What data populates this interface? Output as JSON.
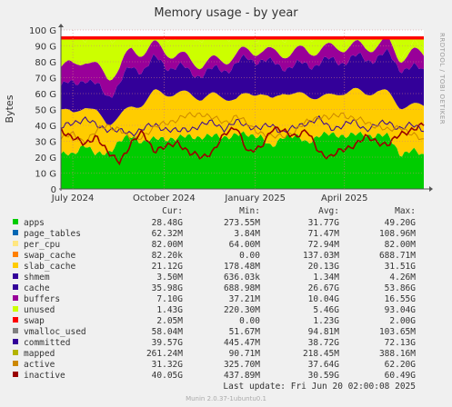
{
  "chart_data": {
    "type": "area",
    "title": "Memory usage - by year",
    "ylabel": "Bytes",
    "side_label": "RRDTOOL / TOBI OETIKER",
    "footer": "Munin 2.0.37-1ubuntu0.1",
    "last_update": "Last update: Fri Jun 20 02:00:08 2025",
    "ylim": [
      0,
      100
    ],
    "y_unit": "G",
    "y_ticks": [
      {
        "value": 0,
        "label": "0"
      },
      {
        "value": 10,
        "label": "10 G"
      },
      {
        "value": 20,
        "label": "20 G"
      },
      {
        "value": 30,
        "label": "30 G"
      },
      {
        "value": 40,
        "label": "40 G"
      },
      {
        "value": 50,
        "label": "50 G"
      },
      {
        "value": 60,
        "label": "60 G"
      },
      {
        "value": 70,
        "label": "70 G"
      },
      {
        "value": 80,
        "label": "80 G"
      },
      {
        "value": 90,
        "label": "90 G"
      },
      {
        "value": 100,
        "label": "100 G"
      }
    ],
    "xlim": [
      "2024-06-19",
      "2025-06-20"
    ],
    "x_ticks": [
      {
        "date": "2024-07-01",
        "label": "July 2024"
      },
      {
        "date": "2024-10-01",
        "label": "October 2024"
      },
      {
        "date": "2025-01-01",
        "label": "January 2025"
      },
      {
        "date": "2025-04-01",
        "label": "April 2025"
      }
    ],
    "grid": true,
    "columns": [
      "Cur:",
      "Min:",
      "Avg:",
      "Max:"
    ],
    "series": [
      {
        "name": "apps",
        "color": "#00cc00",
        "kind": "area",
        "values": [
          "28.48G",
          "273.55M",
          "31.77G",
          "49.20G"
        ],
        "trend": [
          22,
          21,
          29,
          21,
          23,
          30,
          33,
          30,
          31,
          32,
          32,
          33,
          33,
          33,
          33,
          34,
          34,
          34,
          25,
          34,
          33,
          29,
          34,
          34,
          34,
          34,
          34,
          34,
          33,
          22,
          24,
          21
        ]
      },
      {
        "name": "page_tables",
        "color": "#0066b3",
        "kind": "area",
        "values": [
          "62.32M",
          "3.84M",
          "71.47M",
          "108.96M"
        ]
      },
      {
        "name": "per_cpu",
        "color": "#ffe680",
        "kind": "area",
        "values": [
          "82.00M",
          "64.00M",
          "72.94M",
          "82.00M"
        ]
      },
      {
        "name": "swap_cache",
        "color": "#ff8000",
        "kind": "area",
        "values": [
          "82.20k",
          "0.00",
          "137.03M",
          "688.71M"
        ]
      },
      {
        "name": "slab_cache",
        "color": "#ffcc00",
        "kind": "area",
        "values": [
          "21.12G",
          "178.48M",
          "20.13G",
          "31.51G"
        ],
        "trend": [
          28,
          26,
          24,
          27,
          18,
          16,
          18,
          24,
          30,
          28,
          28,
          27,
          24,
          26,
          25,
          22,
          26,
          27,
          30,
          28,
          26,
          30,
          24,
          24,
          27,
          28,
          26,
          28,
          27,
          30,
          28,
          32
        ]
      },
      {
        "name": "shmem",
        "color": "#330099",
        "kind": "area",
        "values": [
          "3.50M",
          "636.03k",
          "1.34M",
          "4.26M"
        ]
      },
      {
        "name": "cache",
        "color": "#330099",
        "kind": "area",
        "values": [
          "35.98G",
          "688.98M",
          "26.67G",
          "53.86G"
        ],
        "trend": [
          15,
          18,
          18,
          16,
          18,
          20,
          25,
          22,
          20,
          18,
          17,
          13,
          16,
          15,
          18,
          22,
          22,
          21,
          23,
          16,
          18,
          19,
          22,
          22,
          20,
          20,
          22,
          21,
          24,
          25,
          23,
          22
        ]
      },
      {
        "name": "buffers",
        "color": "#990099",
        "kind": "area",
        "values": [
          "7.10G",
          "37.21M",
          "10.04G",
          "16.55G"
        ],
        "trend": [
          12,
          12,
          12,
          12,
          12,
          10,
          11,
          11,
          9,
          9,
          7,
          8,
          6,
          6,
          6,
          6,
          5,
          6,
          7,
          8,
          9,
          9,
          8,
          8,
          9,
          8,
          7,
          8,
          8,
          6,
          10,
          10
        ]
      },
      {
        "name": "unused",
        "color": "#ccff00",
        "kind": "area",
        "values": [
          "1.43G",
          "220.30M",
          "5.46G",
          "93.04G"
        ],
        "trend": [
          20,
          20,
          15,
          22,
          27,
          22,
          11,
          12,
          9,
          11,
          13,
          17,
          18,
          18,
          16,
          16,
          11,
          10,
          13,
          12,
          12,
          11,
          10,
          10,
          8,
          8,
          8,
          7,
          6,
          5,
          3,
          3
        ]
      },
      {
        "name": "swap",
        "color": "#ff0000",
        "kind": "area",
        "values": [
          "2.05M",
          "0.00",
          "1.23G",
          "2.00G"
        ]
      },
      {
        "name": "vmalloc_used",
        "color": "#808080",
        "kind": "line",
        "values": [
          "58.04M",
          "51.67M",
          "94.81M",
          "103.65M"
        ]
      },
      {
        "name": "committed",
        "color": "#330099",
        "kind": "line",
        "values": [
          "39.57G",
          "445.47M",
          "38.72G",
          "72.13G"
        ],
        "trend": [
          38,
          42,
          44,
          40,
          38,
          36,
          35,
          38,
          40,
          38,
          36,
          38,
          40,
          42,
          38,
          42,
          40,
          38,
          40,
          36,
          38,
          42,
          44,
          38,
          40,
          42,
          38,
          40,
          42,
          38,
          40,
          38
        ]
      },
      {
        "name": "mapped",
        "color": "#b3b300",
        "kind": "line",
        "values": [
          "261.24M",
          "90.71M",
          "218.45M",
          "388.16M"
        ]
      },
      {
        "name": "active",
        "color": "#cc8800",
        "kind": "line",
        "values": [
          "31.32G",
          "325.70M",
          "37.64G",
          "62.20G"
        ],
        "trend": [
          32,
          34,
          30,
          36,
          40,
          38,
          30,
          34,
          38,
          42,
          44,
          46,
          48,
          44,
          42,
          46,
          40,
          36,
          32,
          34,
          36,
          42,
          46,
          44,
          48,
          44,
          42,
          40,
          36,
          40,
          34,
          30
        ]
      },
      {
        "name": "inactive",
        "color": "#990000",
        "kind": "line",
        "values": [
          "40.05G",
          "437.89M",
          "30.59G",
          "60.49G"
        ],
        "trend": [
          38,
          32,
          28,
          34,
          22,
          18,
          28,
          36,
          24,
          26,
          30,
          22,
          20,
          24,
          34,
          40,
          22,
          26,
          38,
          36,
          34,
          36,
          24,
          20,
          24,
          28,
          32,
          30,
          28,
          34,
          38,
          40
        ]
      }
    ]
  }
}
